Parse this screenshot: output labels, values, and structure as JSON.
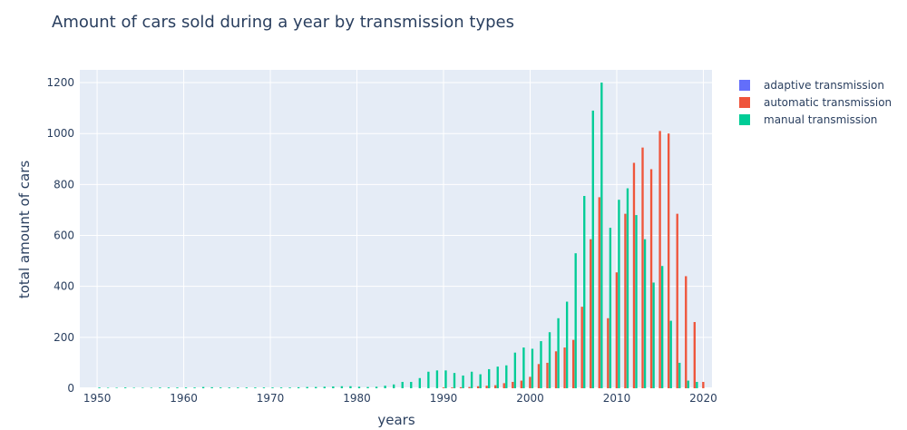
{
  "chart_data": {
    "type": "bar",
    "title": "Amount of cars sold during a year by transmission types",
    "xlabel": "years",
    "ylabel": "total amount of cars",
    "xlim": [
      1948,
      2021
    ],
    "ylim": [
      0,
      1250
    ],
    "x_ticks": [
      1950,
      1960,
      1970,
      1980,
      1990,
      2000,
      2010,
      2020
    ],
    "y_ticks": [
      0,
      200,
      400,
      600,
      800,
      1000,
      1200
    ],
    "grid": true,
    "legend_position": "right",
    "x": [
      1950,
      1951,
      1952,
      1953,
      1954,
      1955,
      1956,
      1957,
      1958,
      1959,
      1960,
      1961,
      1962,
      1963,
      1964,
      1965,
      1966,
      1967,
      1968,
      1969,
      1970,
      1971,
      1972,
      1973,
      1974,
      1975,
      1976,
      1977,
      1978,
      1979,
      1980,
      1981,
      1982,
      1983,
      1984,
      1985,
      1986,
      1987,
      1988,
      1989,
      1990,
      1991,
      1992,
      1993,
      1994,
      1995,
      1996,
      1997,
      1998,
      1999,
      2000,
      2001,
      2002,
      2003,
      2004,
      2005,
      2006,
      2007,
      2008,
      2009,
      2010,
      2011,
      2012,
      2013,
      2014,
      2015,
      2016,
      2017,
      2018,
      2019,
      2020
    ],
    "series": [
      {
        "name": "adaptive transmission",
        "color": "#636efa",
        "values": [
          0,
          0,
          0,
          0,
          0,
          0,
          0,
          0,
          0,
          0,
          0,
          0,
          0,
          0,
          0,
          0,
          0,
          0,
          0,
          0,
          0,
          0,
          0,
          0,
          0,
          0,
          0,
          0,
          0,
          0,
          0,
          0,
          0,
          0,
          0,
          0,
          0,
          0,
          0,
          0,
          0,
          0,
          0,
          0,
          0,
          0,
          0,
          0,
          0,
          0,
          0,
          0,
          0,
          0,
          0,
          0,
          0,
          0,
          0,
          0,
          0,
          0,
          0,
          0,
          0,
          0,
          0,
          0,
          0,
          0,
          0
        ]
      },
      {
        "name": "automatic transmission",
        "color": "#ef553b",
        "values": [
          0,
          0,
          0,
          0,
          0,
          0,
          0,
          0,
          0,
          0,
          0,
          0,
          0,
          0,
          0,
          0,
          0,
          0,
          0,
          0,
          0,
          0,
          0,
          0,
          0,
          0,
          0,
          0,
          0,
          0,
          0,
          0,
          0,
          0,
          0,
          0,
          0,
          0,
          0,
          0,
          3,
          3,
          4,
          5,
          8,
          10,
          12,
          20,
          25,
          30,
          45,
          95,
          100,
          145,
          160,
          190,
          320,
          585,
          750,
          275,
          455,
          685,
          885,
          945,
          860,
          1010,
          1000,
          685,
          440,
          260,
          25
        ]
      },
      {
        "name": "manual transmission",
        "color": "#00cc96",
        "values": [
          3,
          2,
          2,
          3,
          2,
          2,
          2,
          3,
          3,
          3,
          3,
          3,
          5,
          4,
          3,
          3,
          3,
          3,
          3,
          3,
          3,
          3,
          3,
          4,
          5,
          5,
          6,
          7,
          8,
          8,
          6,
          5,
          6,
          10,
          15,
          25,
          25,
          40,
          65,
          70,
          70,
          60,
          50,
          65,
          55,
          75,
          85,
          90,
          140,
          160,
          155,
          185,
          220,
          275,
          340,
          530,
          755,
          1090,
          1200,
          630,
          740,
          785,
          680,
          585,
          415,
          480,
          265,
          100,
          30,
          25,
          0
        ]
      }
    ]
  }
}
